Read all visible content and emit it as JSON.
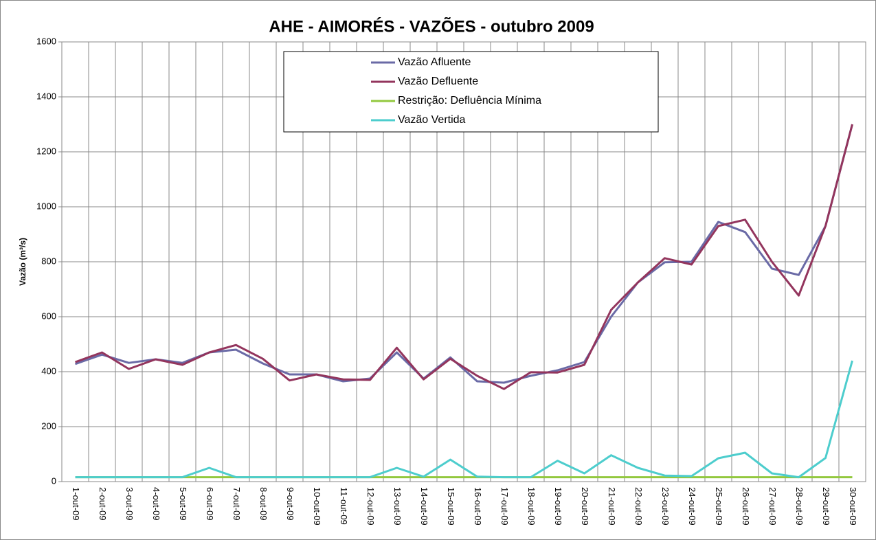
{
  "chart_data": {
    "type": "line",
    "title": "AHE - AIMORÉS - VAZÕES - outubro 2009",
    "y_label": "Vazão (m³/s)",
    "categories": [
      "1-out-09",
      "2-out-09",
      "3-out-09",
      "4-out-09",
      "5-out-09",
      "6-out-09",
      "7-out-09",
      "8-out-09",
      "9-out-09",
      "10-out-09",
      "11-out-09",
      "12-out-09",
      "13-out-09",
      "14-out-09",
      "15-out-09",
      "16-out-09",
      "17-out-09",
      "18-out-09",
      "19-out-09",
      "20-out-09",
      "21-out-09",
      "22-out-09",
      "23-out-09",
      "24-out-09",
      "25-out-09",
      "26-out-09",
      "27-out-09",
      "28-out-09",
      "29-out-09",
      "30-out-09"
    ],
    "series": [
      {
        "name": "Vazão Afluente",
        "color": "#6a6aa6",
        "values": [
          428,
          462,
          432,
          445,
          432,
          470,
          480,
          430,
          390,
          390,
          365,
          375,
          470,
          375,
          452,
          365,
          360,
          385,
          405,
          435,
          600,
          725,
          798,
          800,
          945,
          908,
          775,
          752,
          930,
          1300
        ]
      },
      {
        "name": "Vazão Defluente",
        "color": "#93355d",
        "values": [
          435,
          470,
          410,
          445,
          425,
          470,
          497,
          447,
          368,
          390,
          372,
          370,
          487,
          372,
          447,
          385,
          337,
          398,
          397,
          425,
          625,
          725,
          813,
          790,
          930,
          953,
          800,
          677,
          930,
          1300
        ]
      },
      {
        "name": "Restrição: Defluência Mínima",
        "color": "#92c83e",
        "values": [
          16,
          16,
          16,
          16,
          16,
          16,
          16,
          16,
          16,
          16,
          16,
          16,
          16,
          16,
          16,
          16,
          16,
          16,
          16,
          16,
          16,
          16,
          16,
          16,
          16,
          16,
          16,
          16,
          16,
          16
        ]
      },
      {
        "name": "Vazão Vertida",
        "color": "#4dcdcd",
        "values": [
          16,
          16,
          16,
          16,
          16,
          50,
          16,
          16,
          16,
          16,
          16,
          16,
          50,
          18,
          80,
          18,
          16,
          16,
          76,
          30,
          96,
          50,
          22,
          20,
          85,
          105,
          30,
          16,
          86,
          440
        ]
      }
    ],
    "ylim": [
      0,
      1600
    ],
    "yticks": [
      0,
      200,
      400,
      600,
      800,
      1000,
      1200,
      1400,
      1600
    ],
    "grid": true
  }
}
